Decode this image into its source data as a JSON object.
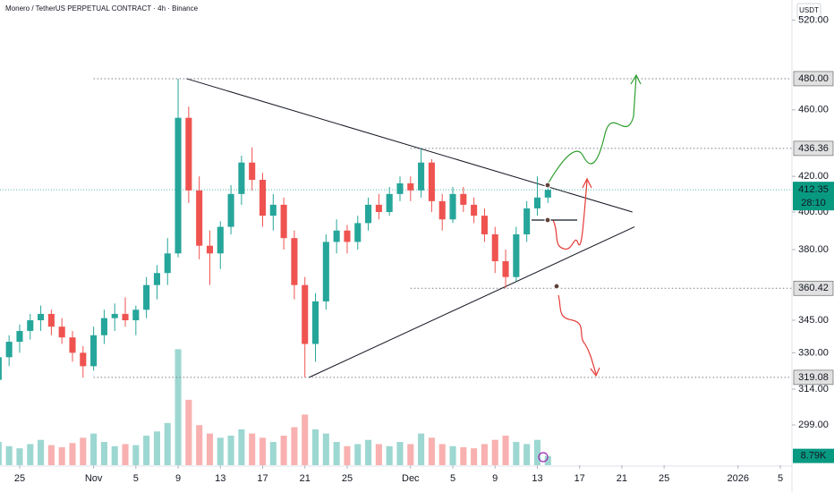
{
  "chart_data": {
    "type": "candlestick",
    "title": "Monero / TetherUS PERPETUAL CONTRACT · 4h · Binance",
    "currency": "USDT",
    "log_scale": true,
    "up_color": "#26a69a",
    "down_color": "#ef5350",
    "x": [
      -2,
      -1,
      0,
      1,
      2,
      3,
      4,
      5,
      6,
      7,
      8,
      9,
      10,
      11,
      12,
      13,
      14,
      15,
      16,
      17,
      18,
      19,
      20,
      21,
      22,
      23,
      24,
      25,
      26,
      27,
      28,
      29,
      30,
      31,
      32,
      33,
      34,
      35,
      36,
      37,
      38,
      39,
      40,
      41,
      42,
      43,
      44,
      45,
      46,
      47,
      48,
      49,
      50
    ],
    "open": [
      318,
      328,
      335,
      340,
      345,
      348,
      342,
      337,
      330,
      324,
      338,
      346,
      348,
      345,
      350,
      362,
      368,
      378,
      455,
      412,
      382,
      378,
      392,
      410,
      428,
      418,
      398,
      404,
      386,
      362,
      334,
      354,
      384,
      390,
      384,
      394,
      404,
      400,
      410,
      416,
      412,
      428,
      406,
      396,
      410,
      404,
      398,
      388,
      374,
      366,
      388,
      402,
      408
    ],
    "high": [
      332,
      338,
      343,
      348,
      352,
      350,
      346,
      340,
      333,
      342,
      350,
      353,
      356,
      352,
      366,
      372,
      386,
      480,
      462,
      420,
      390,
      395,
      415,
      432,
      437,
      422,
      410,
      408,
      390,
      366,
      358,
      388,
      396,
      393,
      398,
      408,
      410,
      414,
      420,
      420,
      436.36,
      430,
      410,
      414,
      414,
      408,
      402,
      392,
      380,
      392,
      406,
      420,
      416
    ],
    "low": [
      312,
      324,
      330,
      336,
      340,
      338,
      334,
      326,
      319,
      322,
      334,
      340,
      342,
      338,
      346,
      355,
      362,
      376,
      405,
      375,
      362,
      370,
      388,
      404,
      412,
      392,
      390,
      380,
      355,
      319.08,
      326,
      350,
      378,
      378,
      380,
      390,
      396,
      398,
      406,
      406,
      408,
      400,
      390,
      394,
      400,
      394,
      384,
      368,
      360.42,
      364,
      384,
      398,
      405
    ],
    "close": [
      328,
      335,
      340,
      345,
      348,
      342,
      337,
      330,
      324,
      338,
      346,
      348,
      345,
      350,
      362,
      368,
      378,
      455,
      412,
      382,
      378,
      392,
      410,
      428,
      418,
      398,
      404,
      386,
      362,
      334,
      354,
      384,
      390,
      384,
      394,
      404,
      400,
      410,
      416,
      412,
      428,
      406,
      396,
      410,
      404,
      398,
      388,
      374,
      366,
      388,
      402,
      408,
      412.35
    ],
    "volume": [
      22000,
      18000,
      16000,
      20000,
      24000,
      19000,
      17000,
      21000,
      26000,
      30000,
      22000,
      18000,
      20000,
      19000,
      28000,
      32000,
      40000,
      110000,
      62000,
      38000,
      30000,
      26000,
      28000,
      34000,
      30000,
      26000,
      22000,
      28000,
      36000,
      48000,
      34000,
      30000,
      22000,
      18000,
      20000,
      24000,
      20000,
      18000,
      22000,
      20000,
      30000,
      26000,
      20000,
      18000,
      17000,
      16000,
      20000,
      24000,
      28000,
      22000,
      20000,
      24000,
      8790
    ],
    "volume_value_label": "8.79K",
    "vlim": [
      0,
      140000
    ],
    "xlim": [
      -1.86,
      73.1
    ],
    "ylim": [
      283,
      534.5
    ],
    "xticks": [
      {
        "value": 0,
        "label": "25"
      },
      {
        "value": 7,
        "label": "Nov"
      },
      {
        "value": 11,
        "label": "5"
      },
      {
        "value": 15,
        "label": "9"
      },
      {
        "value": 19,
        "label": "13"
      },
      {
        "value": 23,
        "label": "17"
      },
      {
        "value": 27,
        "label": "21"
      },
      {
        "value": 31,
        "label": "25"
      },
      {
        "value": 37,
        "label": "Dec"
      },
      {
        "value": 41,
        "label": "5"
      },
      {
        "value": 45,
        "label": "9"
      },
      {
        "value": 49,
        "label": "13"
      },
      {
        "value": 53,
        "label": "17"
      },
      {
        "value": 57,
        "label": "21"
      },
      {
        "value": 61,
        "label": "25"
      },
      {
        "value": 68,
        "label": "2026"
      },
      {
        "value": 72,
        "label": "5"
      }
    ],
    "yticks": [
      {
        "value": 520,
        "label": "520.00"
      },
      {
        "value": 460,
        "label": "460.00"
      },
      {
        "value": 420,
        "label": "420.00"
      },
      {
        "value": 400,
        "label": "400.00"
      },
      {
        "value": 380,
        "label": "380.00"
      },
      {
        "value": 345,
        "label": "345.00"
      },
      {
        "value": 330,
        "label": "330.00"
      },
      {
        "value": 314,
        "label": "314.00"
      },
      {
        "value": 299,
        "label": "299.00"
      }
    ],
    "levels": [
      {
        "value": 480,
        "label": "480.00",
        "start_x": 7
      },
      {
        "value": 436.36,
        "label": "436.36",
        "start_x": 37
      },
      {
        "value": 360.42,
        "label": "360.42",
        "start_x": 37
      },
      {
        "value": 319.08,
        "label": "319.08",
        "start_x": 7
      }
    ],
    "last_price": {
      "value": 412.35,
      "label": "412.35",
      "countdown": "28:10"
    },
    "trendlines": [
      {
        "points": [
          {
            "x": 15.8,
            "y": 480
          },
          {
            "x": 58,
            "y": 400
          }
        ]
      },
      {
        "points": [
          {
            "x": 27.4,
            "y": 319.08
          },
          {
            "x": 58.2,
            "y": 392
          }
        ]
      }
    ]
  }
}
